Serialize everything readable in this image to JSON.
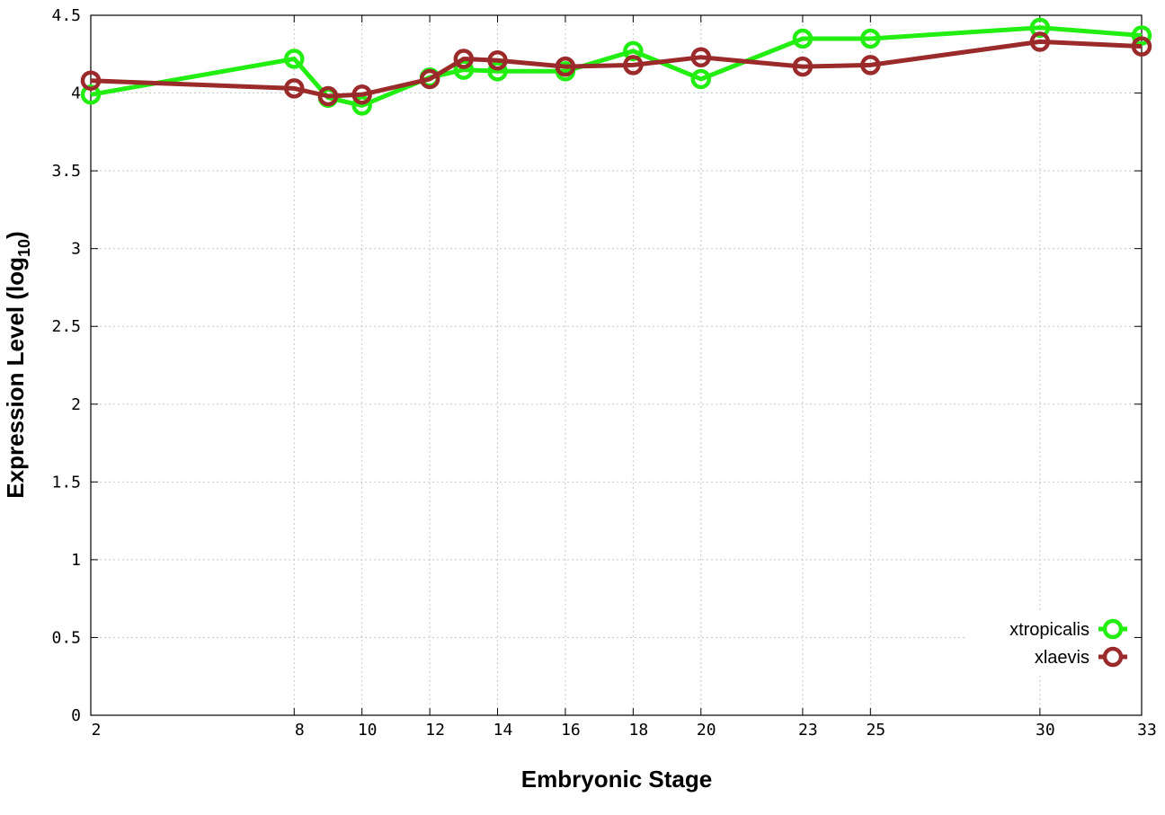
{
  "chart_data": {
    "type": "line",
    "xlabel": "Embryonic Stage",
    "ylabel": "Expression Level (log",
    "ylabel_sub": "10",
    "ylabel_close": ")",
    "x_ticks": [
      2,
      8,
      10,
      12,
      14,
      16,
      18,
      20,
      23,
      25,
      30,
      33
    ],
    "y_ticks": [
      "0",
      "0.5",
      "1",
      "1.5",
      "2",
      "2.5",
      "3",
      "3.5",
      "4",
      "4.5"
    ],
    "xlim": [
      2,
      33
    ],
    "ylim": [
      0,
      4.5
    ],
    "grid": true,
    "legend_position": "bottom-right",
    "series": [
      {
        "name": "xtropicalis",
        "color": "#22ee11",
        "x": [
          2,
          8,
          9,
          10,
          12,
          13,
          14,
          16,
          18,
          20,
          23,
          25,
          30,
          33
        ],
        "y": [
          3.99,
          4.22,
          3.97,
          3.92,
          4.1,
          4.15,
          4.14,
          4.14,
          4.27,
          4.09,
          4.35,
          4.35,
          4.42,
          4.37
        ]
      },
      {
        "name": "xlaevis",
        "color": "#9b2a2a",
        "x": [
          2,
          8,
          9,
          10,
          12,
          13,
          14,
          16,
          18,
          20,
          23,
          25,
          30,
          33
        ],
        "y": [
          4.08,
          4.03,
          3.98,
          3.99,
          4.09,
          4.22,
          4.21,
          4.17,
          4.18,
          4.23,
          4.17,
          4.18,
          4.33,
          4.3
        ]
      }
    ]
  }
}
